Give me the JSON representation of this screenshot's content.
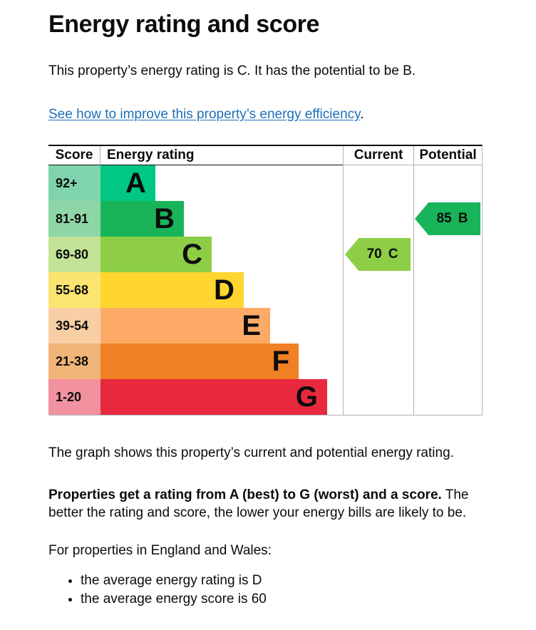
{
  "page": {
    "title": "Energy rating and score",
    "intro": "This property’s energy rating is C. It has the potential to be B.",
    "link_text": "See how to improve this property’s energy efficiency",
    "link_suffix": ".",
    "caption": "The graph shows this property’s current and potential energy rating.",
    "explain_bold": "Properties get a rating from A (best) to G (worst) and a score.",
    "explain_rest": " The better the rating and score, the lower your energy bills are likely to be.",
    "region_intro": "For properties in England and Wales:",
    "bullets": [
      "the average energy rating is D",
      "the average energy score is 60"
    ]
  },
  "colors": {
    "text": "#0b0c0c",
    "link": "#1d70b8",
    "border_dark": "#0b0c0c",
    "border_light": "#b1b4b6"
  },
  "chart_data": {
    "type": "bar",
    "title": "Energy rating and score",
    "columns": [
      "Score",
      "Energy rating",
      "Current",
      "Potential"
    ],
    "legend_position": "none",
    "grid": false,
    "bands": [
      {
        "rating": "A",
        "score_range": "92+",
        "color": "#00c781",
        "score_bg": "#7fd4ae",
        "bar_pct": 22.6
      },
      {
        "rating": "B",
        "score_range": "81-91",
        "color": "#19b459",
        "score_bg": "#8fd6a6",
        "bar_pct": 34.4
      },
      {
        "rating": "C",
        "score_range": "69-80",
        "color": "#8dce46",
        "score_bg": "#c2e396",
        "bar_pct": 45.9
      },
      {
        "rating": "D",
        "score_range": "55-68",
        "color": "#ffd530",
        "score_bg": "#fbe46f",
        "bar_pct": 59.1
      },
      {
        "rating": "E",
        "score_range": "39-54",
        "color": "#fcaa65",
        "score_bg": "#f8cfa4",
        "bar_pct": 70.0
      },
      {
        "rating": "F",
        "score_range": "21-38",
        "color": "#ef8023",
        "score_bg": "#f2b579",
        "bar_pct": 81.8
      },
      {
        "rating": "G",
        "score_range": "1-20",
        "color": "#e8293d",
        "score_bg": "#f2919f",
        "bar_pct": 93.5
      }
    ],
    "current": {
      "value": 70,
      "label": "70",
      "rating": "C",
      "color": "#8dce46",
      "band_index": 2
    },
    "potential": {
      "value": 85,
      "label": "85",
      "rating": "B",
      "color": "#19b459",
      "band_index": 1
    }
  }
}
